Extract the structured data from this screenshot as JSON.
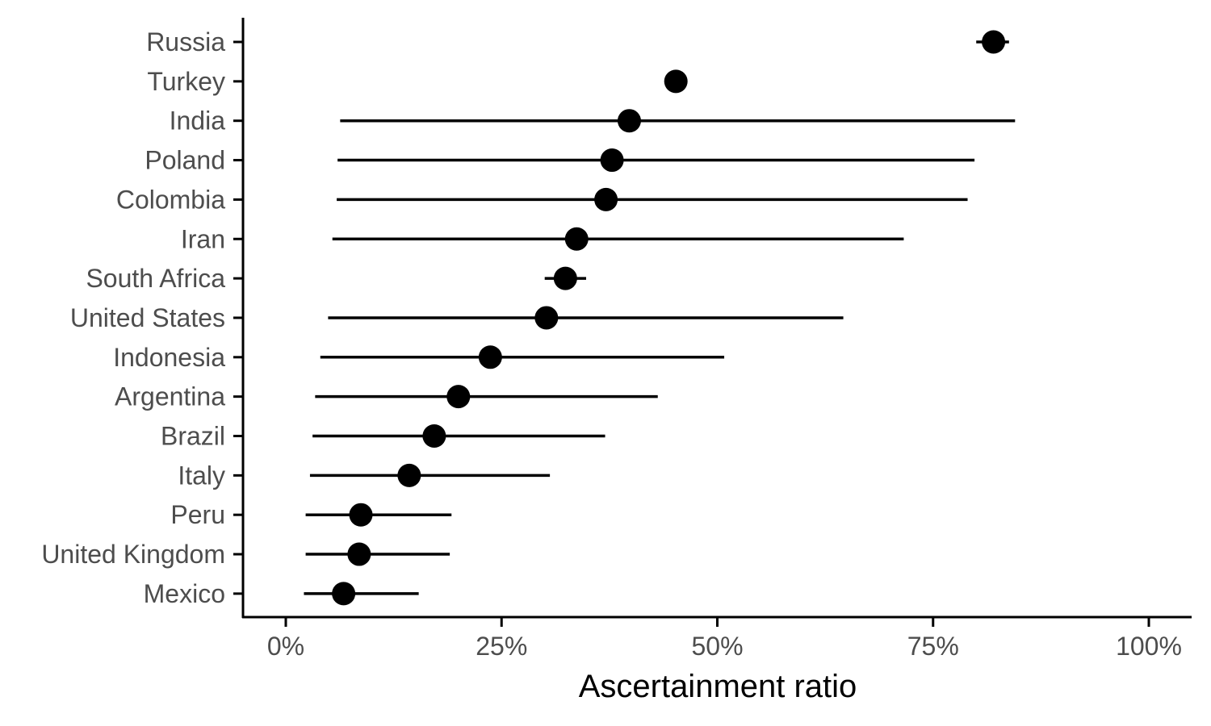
{
  "chart_data": {
    "type": "scatter",
    "subtype": "point-range",
    "title": "",
    "xlabel": "Ascertainment ratio",
    "ylabel": "",
    "xlim": [
      -0.01,
      1.0
    ],
    "x_ticks": [
      0,
      0.25,
      0.5,
      0.75,
      1.0
    ],
    "x_tick_labels": [
      "0%",
      "25%",
      "50%",
      "75%",
      "100%"
    ],
    "grid": false,
    "legend": "none",
    "colors": {
      "point": "#000000",
      "interval": "#000000",
      "axis": "#000000",
      "tick_label": "#4d4d4d"
    },
    "categories": [
      "Russia",
      "Turkey",
      "India",
      "Poland",
      "Colombia",
      "Iran",
      "South Africa",
      "United States",
      "Indonesia",
      "Argentina",
      "Brazil",
      "Italy",
      "Peru",
      "United Kingdom",
      "Mexico"
    ],
    "estimate": [
      0.82,
      0.452,
      0.398,
      0.378,
      0.371,
      0.337,
      0.324,
      0.302,
      0.237,
      0.2,
      0.172,
      0.143,
      0.087,
      0.085,
      0.067
    ],
    "lower": [
      0.8,
      0.452,
      0.063,
      0.06,
      0.059,
      0.054,
      0.3,
      0.049,
      0.04,
      0.034,
      0.031,
      0.028,
      0.023,
      0.023,
      0.021
    ],
    "upper": [
      0.838,
      0.452,
      0.845,
      0.798,
      0.79,
      0.716,
      0.348,
      0.646,
      0.508,
      0.431,
      0.37,
      0.306,
      0.192,
      0.19,
      0.154
    ]
  }
}
